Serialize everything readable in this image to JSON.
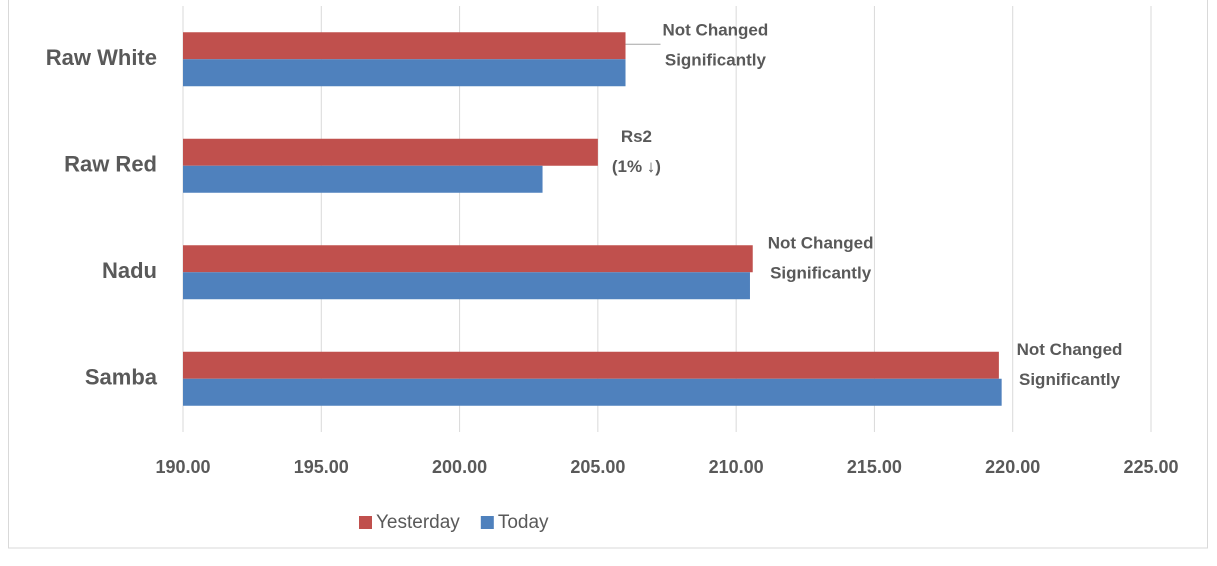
{
  "chart_data": {
    "type": "barh",
    "categories": [
      "Raw White",
      "Raw Red",
      "Nadu",
      "Samba"
    ],
    "series": [
      {
        "name": "Yesterday",
        "color": "#c0504d",
        "values": [
          206.0,
          205.0,
          210.6,
          219.5
        ]
      },
      {
        "name": "Today",
        "color": "#4f81bd",
        "values": [
          206.0,
          203.0,
          210.5,
          219.6
        ]
      }
    ],
    "annotations": [
      {
        "category": "Raw White",
        "lines": [
          "Not Changed",
          "Significantly"
        ]
      },
      {
        "category": "Raw Red",
        "lines": [
          "Rs2",
          "(1% ↓)"
        ]
      },
      {
        "category": "Nadu",
        "lines": [
          "Not Changed",
          "Significantly"
        ]
      },
      {
        "category": "Samba",
        "lines": [
          "Not Changed",
          "Significantly"
        ]
      }
    ],
    "xlim": [
      190,
      225
    ],
    "xticks": [
      {
        "value": 190,
        "label": "190.00"
      },
      {
        "value": 195,
        "label": "195.00"
      },
      {
        "value": 200,
        "label": "200.00"
      },
      {
        "value": 205,
        "label": "205.00"
      },
      {
        "value": 210,
        "label": "210.00"
      },
      {
        "value": 215,
        "label": "215.00"
      },
      {
        "value": 220,
        "label": "220.00"
      },
      {
        "value": 225,
        "label": "225.00"
      }
    ],
    "grid": true,
    "legend": "bottom"
  }
}
